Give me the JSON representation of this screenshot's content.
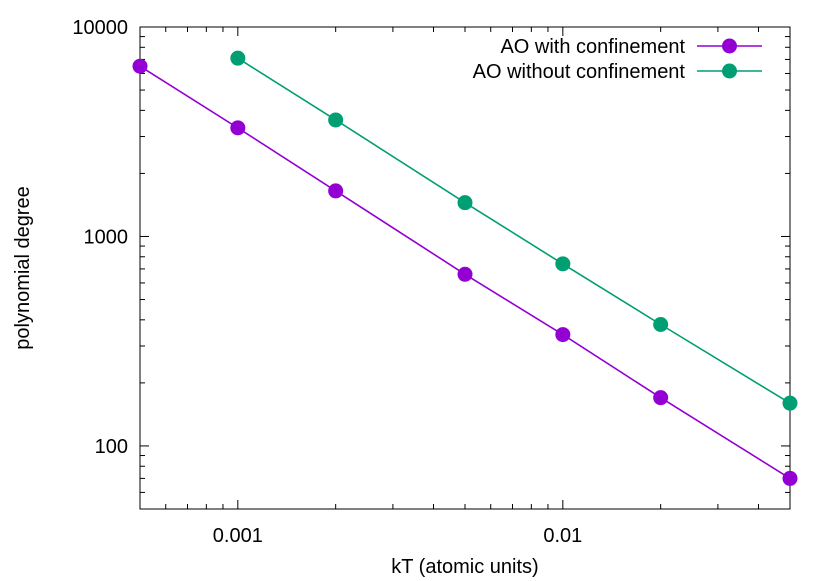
{
  "chart_data": {
    "type": "line",
    "xlabel": "kT (atomic units)",
    "ylabel": "polynomial degree",
    "x_scale": "log",
    "y_scale": "log",
    "xlim": [
      0.0005,
      0.05
    ],
    "ylim": [
      50,
      10000
    ],
    "x_ticks": [
      {
        "value": 0.001,
        "label": "0.001"
      },
      {
        "value": 0.01,
        "label": "0.01"
      }
    ],
    "y_ticks": [
      {
        "value": 100,
        "label": "100"
      },
      {
        "value": 1000,
        "label": "1000"
      },
      {
        "value": 10000,
        "label": "10000"
      }
    ],
    "legend_position": "top-right",
    "grid": false,
    "series": [
      {
        "name": "AO with confinement",
        "color": "#9400d3",
        "x": [
          0.0005,
          0.001,
          0.002,
          0.005,
          0.01,
          0.02,
          0.05
        ],
        "y": [
          6500,
          3300,
          1650,
          660,
          340,
          170,
          70
        ]
      },
      {
        "name": "AO without confinement",
        "color": "#009e73",
        "x": [
          0.001,
          0.002,
          0.005,
          0.01,
          0.02,
          0.05
        ],
        "y": [
          7100,
          3600,
          1450,
          740,
          380,
          160
        ]
      }
    ]
  }
}
